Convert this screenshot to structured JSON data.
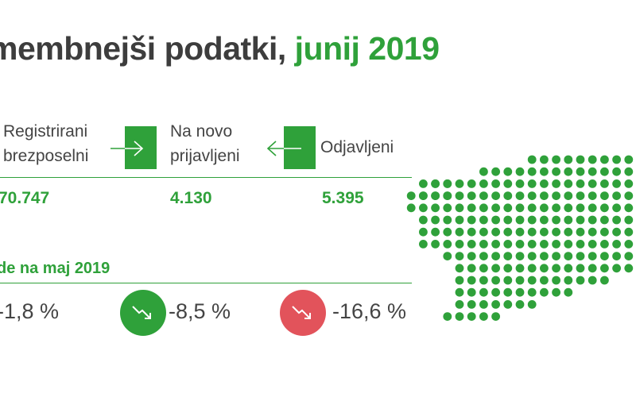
{
  "title": {
    "main": "membnejši podatki, ",
    "accent": "junij 2019"
  },
  "labels": {
    "registered": [
      "Registrirani",
      "brezposelni"
    ],
    "new": [
      "Na novo",
      "prijavljeni"
    ],
    "deregistered": "Odjavljeni"
  },
  "values": {
    "registered": "70.747",
    "new": "4.130",
    "deregistered": "5.395"
  },
  "section": {
    "heading": "de na maj 2019"
  },
  "changes": {
    "registered": "-1,8 %",
    "new": "-8,5 %",
    "deregistered": "-16,6 %"
  },
  "icons": {
    "arrow_in": "arrow-right-icon",
    "arrow_out": "arrow-left-icon",
    "trend_down": "trend-down-icon"
  },
  "colors": {
    "accent": "#2fa13a",
    "negative": "#e2535b",
    "text": "#3d3d3d",
    "map_dot": "#2fa13a"
  }
}
